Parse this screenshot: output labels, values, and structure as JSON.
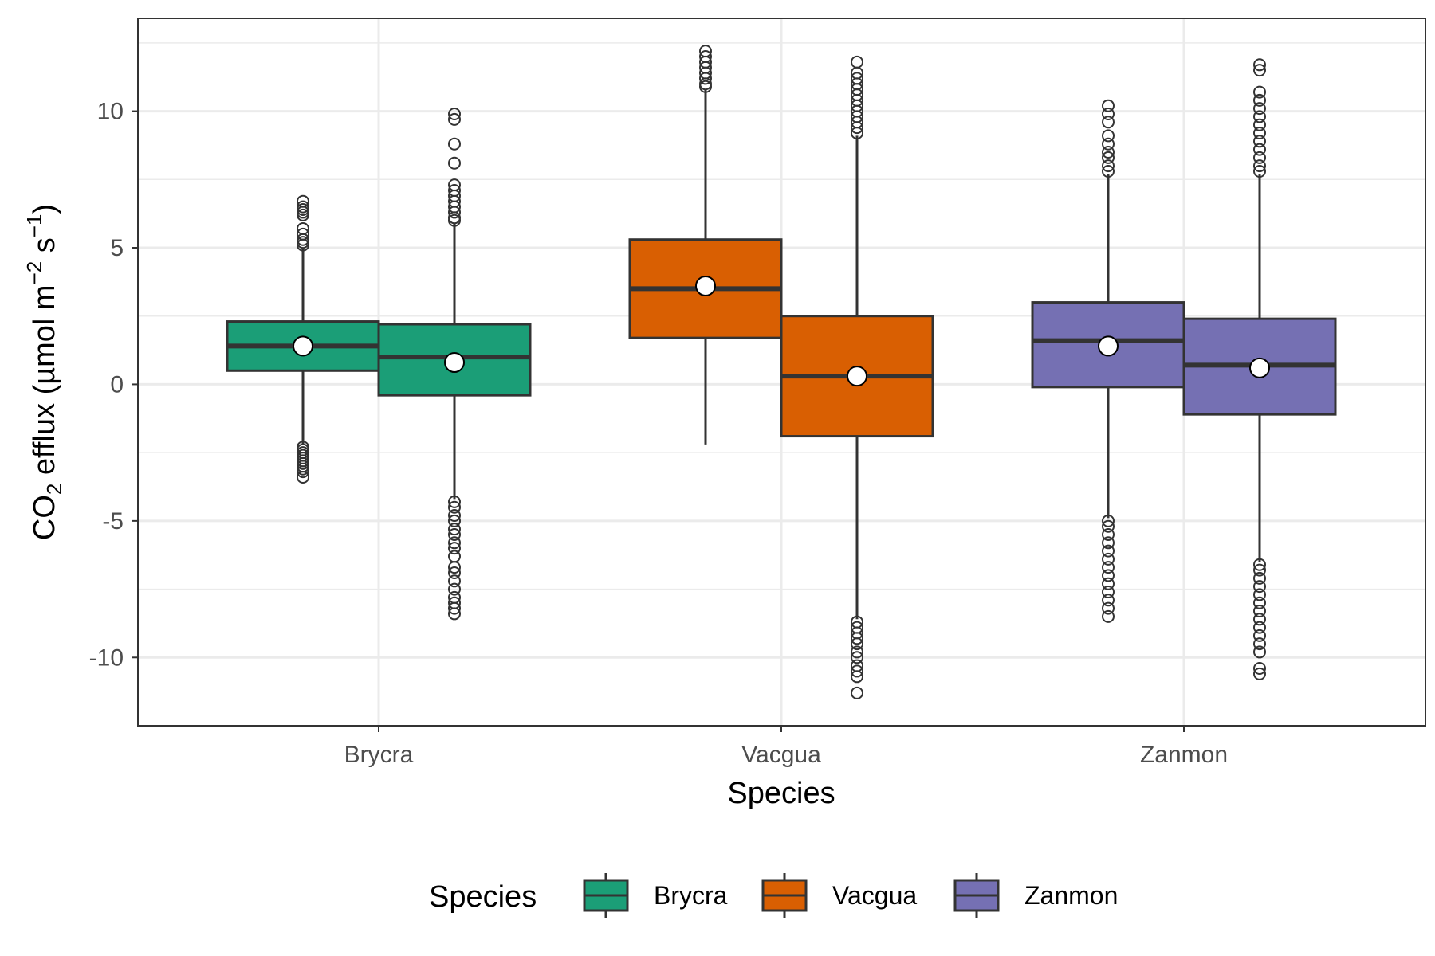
{
  "chart_data": {
    "type": "box",
    "title": "",
    "xlabel": "Species",
    "ylabel": {
      "prefix": "CO",
      "sub": "2",
      "main": " efflux (µmol m",
      "sup1": "−2",
      "mid": " s",
      "sup2": "−1",
      "suffix": ")"
    },
    "ylim": [
      -12.5,
      13.4
    ],
    "yticks": [
      10,
      5,
      0,
      -5,
      -10
    ],
    "ytick_labels": [
      "10",
      "5",
      "0",
      "-5",
      "-10"
    ],
    "grid": true,
    "categories": [
      "Brycra",
      "Vacgua",
      "Zanmon"
    ],
    "legend": {
      "title": "Species",
      "position": "bottom",
      "entries": [
        "Brycra",
        "Vacgua",
        "Zanmon"
      ]
    },
    "colors": {
      "Brycra": "#1b9e77",
      "Vacgua": "#d95f02",
      "Zanmon": "#7570b3"
    },
    "boxes": [
      {
        "category": "Brycra",
        "group": 1,
        "q1": 0.5,
        "median": 1.4,
        "q3": 2.3,
        "whisker_low": -2.2,
        "whisker_high": 5.0,
        "mean": 1.4,
        "outliers": [
          5.1,
          5.2,
          5.3,
          5.5,
          5.7,
          6.2,
          6.3,
          6.4,
          6.5,
          6.7,
          -2.3,
          -2.4,
          -2.5,
          -2.6,
          -2.7,
          -2.8,
          -2.9,
          -3.0,
          -3.1,
          -3.2,
          -3.4
        ]
      },
      {
        "category": "Brycra",
        "group": 2,
        "q1": -0.4,
        "median": 1.0,
        "q3": 2.2,
        "whisker_low": -4.2,
        "whisker_high": 5.9,
        "mean": 0.8,
        "outliers": [
          6.0,
          6.1,
          6.3,
          6.5,
          6.7,
          6.9,
          7.1,
          7.3,
          8.1,
          8.8,
          9.7,
          9.9,
          -4.3,
          -4.5,
          -4.8,
          -5.0,
          -5.3,
          -5.5,
          -5.8,
          -6.0,
          -6.3,
          -6.7,
          -6.9,
          -7.2,
          -7.5,
          -7.8,
          -8.0,
          -8.2,
          -8.4
        ]
      },
      {
        "category": "Vacgua",
        "group": 1,
        "q1": 1.7,
        "median": 3.5,
        "q3": 5.3,
        "whisker_low": -2.2,
        "whisker_high": 10.8,
        "mean": 3.6,
        "outliers": [
          10.9,
          11.0,
          11.2,
          11.4,
          11.6,
          11.8,
          12.0,
          12.2
        ]
      },
      {
        "category": "Vacgua",
        "group": 2,
        "q1": -1.9,
        "median": 0.3,
        "q3": 2.5,
        "whisker_low": -8.6,
        "whisker_high": 9.1,
        "mean": 0.3,
        "outliers": [
          9.2,
          9.4,
          9.6,
          9.8,
          10.0,
          10.2,
          10.4,
          10.6,
          10.8,
          11.0,
          11.2,
          11.4,
          11.8,
          -8.7,
          -8.9,
          -9.1,
          -9.3,
          -9.5,
          -9.8,
          -10.0,
          -10.3,
          -10.5,
          -10.7,
          -11.3
        ]
      },
      {
        "category": "Zanmon",
        "group": 1,
        "q1": -0.1,
        "median": 1.6,
        "q3": 3.0,
        "whisker_low": -4.9,
        "whisker_high": 7.7,
        "mean": 1.4,
        "outliers": [
          7.8,
          8.0,
          8.3,
          8.5,
          8.8,
          9.1,
          9.6,
          9.9,
          10.2,
          -5.0,
          -5.2,
          -5.5,
          -5.8,
          -6.1,
          -6.4,
          -6.7,
          -7.0,
          -7.3,
          -7.6,
          -7.9,
          -8.2,
          -8.5
        ]
      },
      {
        "category": "Zanmon",
        "group": 2,
        "q1": -1.1,
        "median": 0.7,
        "q3": 2.4,
        "whisker_low": -6.5,
        "whisker_high": 7.7,
        "mean": 0.6,
        "outliers": [
          7.8,
          8.0,
          8.3,
          8.6,
          8.9,
          9.2,
          9.5,
          9.8,
          10.1,
          10.4,
          10.7,
          11.5,
          11.7,
          -6.6,
          -6.8,
          -7.1,
          -7.4,
          -7.7,
          -8.0,
          -8.3,
          -8.6,
          -8.9,
          -9.2,
          -9.5,
          -9.8,
          -10.4,
          -10.6
        ]
      }
    ]
  }
}
